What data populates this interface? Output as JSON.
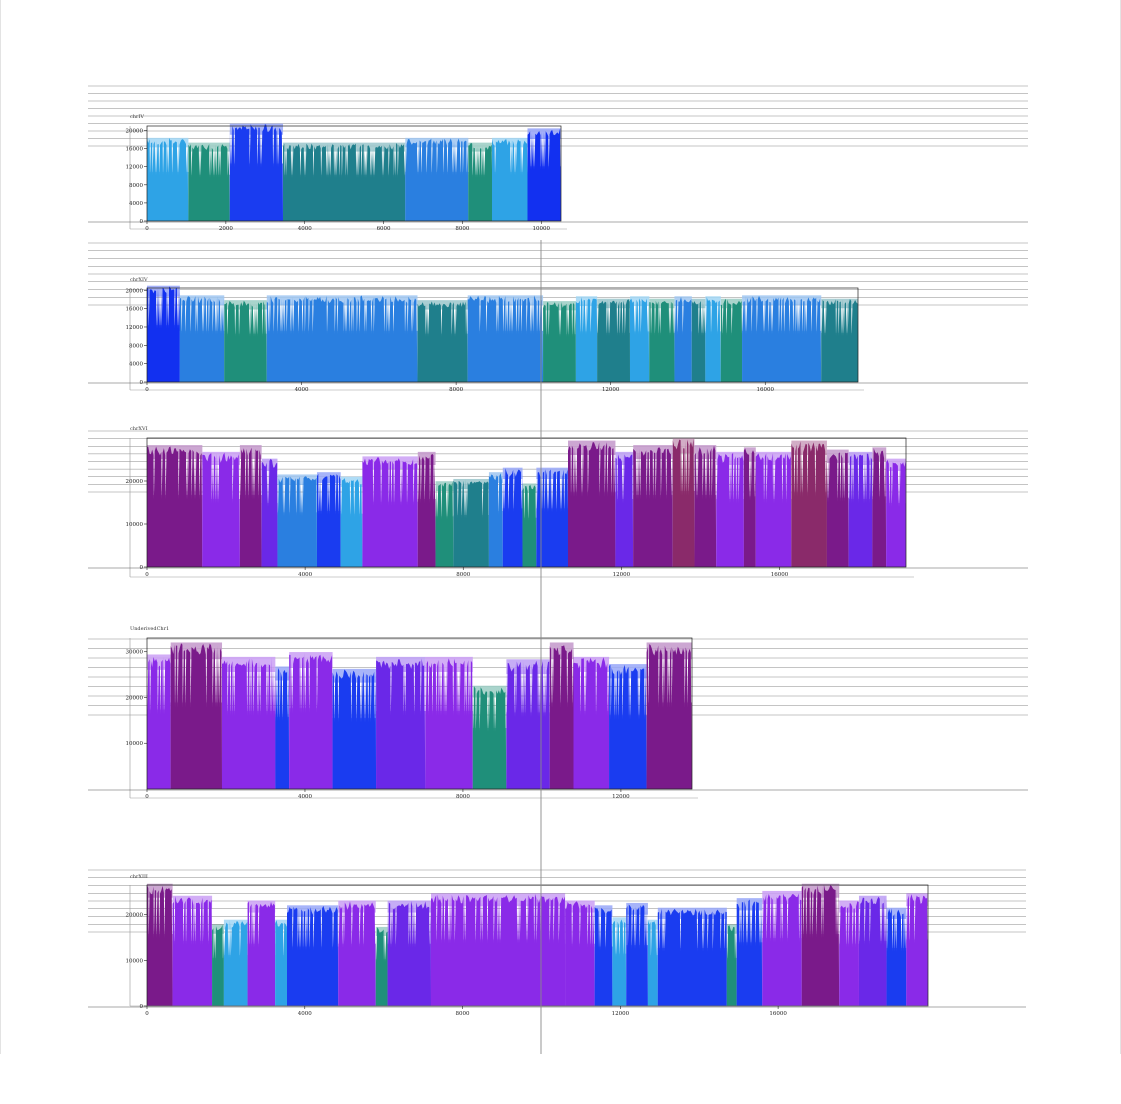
{
  "chart_data": [
    {
      "type": "area",
      "title": "chrIV",
      "xlim": [
        0,
        10500
      ],
      "ylim": [
        0,
        21000
      ],
      "x_ticks": [
        "0",
        "2000",
        "4000",
        "6000",
        "8000",
        "10000"
      ],
      "y_ticks": [
        "0",
        "4000",
        "8000",
        "12000",
        "16000",
        "20000"
      ],
      "segments": [
        {
          "start": 0,
          "end": 1050,
          "value": 17500,
          "color": "#2ea3e6"
        },
        {
          "start": 1050,
          "end": 2100,
          "value": 16500,
          "color": "#1f8f7a"
        },
        {
          "start": 2100,
          "end": 3450,
          "value": 20500,
          "color": "#1a3cf0"
        },
        {
          "start": 3450,
          "end": 6550,
          "value": 16500,
          "color": "#1f7f8c"
        },
        {
          "start": 6550,
          "end": 8150,
          "value": 17500,
          "color": "#2a7fe0"
        },
        {
          "start": 8150,
          "end": 8750,
          "value": 16500,
          "color": "#1f8f7a"
        },
        {
          "start": 8750,
          "end": 9650,
          "value": 17500,
          "color": "#2ea3e6"
        },
        {
          "start": 9650,
          "end": 10500,
          "value": 19500,
          "color": "#1230f0"
        }
      ]
    },
    {
      "type": "area",
      "title": "chrXIV",
      "xlim": [
        0,
        18400
      ],
      "ylim": [
        0,
        20500
      ],
      "x_ticks": [
        "0",
        "4000",
        "8000",
        "12000",
        "16000"
      ],
      "y_ticks": [
        "0",
        "4000",
        "8000",
        "12000",
        "16000",
        "20000"
      ],
      "segments": [
        {
          "start": 0,
          "end": 850,
          "value": 20000,
          "color": "#1230f0"
        },
        {
          "start": 850,
          "end": 2000,
          "value": 18000,
          "color": "#2a7fe0"
        },
        {
          "start": 2000,
          "end": 3100,
          "value": 17000,
          "color": "#1f8f7a"
        },
        {
          "start": 3100,
          "end": 7000,
          "value": 18000,
          "color": "#2a7fe0"
        },
        {
          "start": 7000,
          "end": 8300,
          "value": 17000,
          "color": "#1f7f8c"
        },
        {
          "start": 8300,
          "end": 10250,
          "value": 18000,
          "color": "#2a7fe0"
        },
        {
          "start": 10250,
          "end": 11100,
          "value": 16800,
          "color": "#1f8f7a"
        },
        {
          "start": 11100,
          "end": 11650,
          "value": 17800,
          "color": "#2ea3e6"
        },
        {
          "start": 11650,
          "end": 12500,
          "value": 17300,
          "color": "#1f7f8c"
        },
        {
          "start": 12500,
          "end": 13000,
          "value": 17800,
          "color": "#2ea3e6"
        },
        {
          "start": 13000,
          "end": 13650,
          "value": 17300,
          "color": "#1f8f7a"
        },
        {
          "start": 13650,
          "end": 14100,
          "value": 17800,
          "color": "#2a7fe0"
        },
        {
          "start": 14100,
          "end": 14450,
          "value": 17300,
          "color": "#1f7f8c"
        },
        {
          "start": 14450,
          "end": 14850,
          "value": 17800,
          "color": "#2ea3e6"
        },
        {
          "start": 14850,
          "end": 15400,
          "value": 17300,
          "color": "#1f8f7a"
        },
        {
          "start": 15400,
          "end": 17450,
          "value": 18000,
          "color": "#2a7fe0"
        },
        {
          "start": 17450,
          "end": 18400,
          "value": 17300,
          "color": "#1f7f8c"
        }
      ]
    },
    {
      "type": "area",
      "title": "chrXVI",
      "xlim": [
        0,
        19200
      ],
      "ylim": [
        0,
        30000
      ],
      "x_ticks": [
        "0",
        "4000",
        "8000",
        "12000",
        "16000"
      ],
      "y_ticks": [
        "0",
        "10000",
        "20000"
      ],
      "segments": [
        {
          "start": 0,
          "end": 1400,
          "value": 27000,
          "color": "#7a1a8a"
        },
        {
          "start": 1400,
          "end": 2350,
          "value": 25500,
          "color": "#8a2ae8"
        },
        {
          "start": 2350,
          "end": 2900,
          "value": 27000,
          "color": "#7a1a8a"
        },
        {
          "start": 2900,
          "end": 3300,
          "value": 24000,
          "color": "#6a28e8"
        },
        {
          "start": 3300,
          "end": 4300,
          "value": 20500,
          "color": "#2a7fe0"
        },
        {
          "start": 4300,
          "end": 4900,
          "value": 21000,
          "color": "#1a3cf0"
        },
        {
          "start": 4900,
          "end": 5450,
          "value": 20000,
          "color": "#2ea3e6"
        },
        {
          "start": 5450,
          "end": 6850,
          "value": 24500,
          "color": "#8a2ae8"
        },
        {
          "start": 6850,
          "end": 7300,
          "value": 25500,
          "color": "#7a1a8a"
        },
        {
          "start": 7300,
          "end": 7750,
          "value": 19000,
          "color": "#1f8f7a"
        },
        {
          "start": 7750,
          "end": 8650,
          "value": 19500,
          "color": "#1f7f8c"
        },
        {
          "start": 8650,
          "end": 9000,
          "value": 21000,
          "color": "#2a7fe0"
        },
        {
          "start": 9000,
          "end": 9500,
          "value": 22000,
          "color": "#1a3cf0"
        },
        {
          "start": 9500,
          "end": 9850,
          "value": 18500,
          "color": "#1f8f7a"
        },
        {
          "start": 9850,
          "end": 10650,
          "value": 22000,
          "color": "#1a3cf0"
        },
        {
          "start": 10650,
          "end": 11850,
          "value": 28000,
          "color": "#7a1a8a"
        },
        {
          "start": 11850,
          "end": 12300,
          "value": 25500,
          "color": "#6a28e8"
        },
        {
          "start": 12300,
          "end": 13300,
          "value": 27000,
          "color": "#7a1a8a"
        },
        {
          "start": 13300,
          "end": 13850,
          "value": 28500,
          "color": "#8a2a6a"
        },
        {
          "start": 13850,
          "end": 14400,
          "value": 27000,
          "color": "#7a1a8a"
        },
        {
          "start": 14400,
          "end": 15100,
          "value": 25500,
          "color": "#8a2ae8"
        },
        {
          "start": 15100,
          "end": 15400,
          "value": 26500,
          "color": "#7a1a8a"
        },
        {
          "start": 15400,
          "end": 16300,
          "value": 25500,
          "color": "#8a2ae8"
        },
        {
          "start": 16300,
          "end": 17200,
          "value": 28000,
          "color": "#8a2a6a"
        },
        {
          "start": 17200,
          "end": 17750,
          "value": 26000,
          "color": "#7a1a8a"
        },
        {
          "start": 17750,
          "end": 18350,
          "value": 25500,
          "color": "#6a28e8"
        },
        {
          "start": 18350,
          "end": 18700,
          "value": 26500,
          "color": "#7a1a8a"
        },
        {
          "start": 18700,
          "end": 19200,
          "value": 24000,
          "color": "#8a2ae8"
        }
      ]
    },
    {
      "type": "area",
      "title": "UnderivedChr1",
      "xlim": [
        0,
        13800
      ],
      "ylim": [
        0,
        33000
      ],
      "x_ticks": [
        "0",
        "4000",
        "8000",
        "12000"
      ],
      "y_ticks": [
        "10000",
        "20000",
        "30000"
      ],
      "segments": [
        {
          "start": 0,
          "end": 600,
          "value": 28000,
          "color": "#8a2ae8"
        },
        {
          "start": 600,
          "end": 1900,
          "value": 30500,
          "color": "#7a1a8a"
        },
        {
          "start": 1900,
          "end": 3250,
          "value": 27500,
          "color": "#8a2ae8"
        },
        {
          "start": 3250,
          "end": 3600,
          "value": 25500,
          "color": "#1a3cf0"
        },
        {
          "start": 3600,
          "end": 4700,
          "value": 28500,
          "color": "#8a2ae8"
        },
        {
          "start": 4700,
          "end": 5800,
          "value": 25000,
          "color": "#1a3cf0"
        },
        {
          "start": 5800,
          "end": 7050,
          "value": 27500,
          "color": "#6a28e8"
        },
        {
          "start": 7050,
          "end": 8250,
          "value": 27500,
          "color": "#8a2ae8"
        },
        {
          "start": 8250,
          "end": 9100,
          "value": 21500,
          "color": "#1f8f7a"
        },
        {
          "start": 9100,
          "end": 10200,
          "value": 27000,
          "color": "#6a28e8"
        },
        {
          "start": 10200,
          "end": 10800,
          "value": 30500,
          "color": "#7a1a8a"
        },
        {
          "start": 10800,
          "end": 11700,
          "value": 27500,
          "color": "#8a2ae8"
        },
        {
          "start": 11700,
          "end": 12650,
          "value": 26000,
          "color": "#1a3cf0"
        },
        {
          "start": 12650,
          "end": 13800,
          "value": 30500,
          "color": "#7a1a8a"
        }
      ]
    },
    {
      "type": "area",
      "title": "chrXIII",
      "xlim": [
        0,
        19800
      ],
      "ylim": [
        0,
        26500
      ],
      "x_ticks": [
        "0",
        "4000",
        "8000",
        "12000",
        "16000"
      ],
      "y_ticks": [
        "0",
        "10000",
        "20000"
      ],
      "segments": [
        {
          "start": 0,
          "end": 650,
          "value": 25500,
          "color": "#7a1a8a"
        },
        {
          "start": 650,
          "end": 1650,
          "value": 23000,
          "color": "#8a2ae8"
        },
        {
          "start": 1650,
          "end": 1950,
          "value": 17000,
          "color": "#1f8f7a"
        },
        {
          "start": 1950,
          "end": 2550,
          "value": 18000,
          "color": "#2ea3e6"
        },
        {
          "start": 2550,
          "end": 3250,
          "value": 22000,
          "color": "#8a2ae8"
        },
        {
          "start": 3250,
          "end": 3550,
          "value": 18000,
          "color": "#2ea3e6"
        },
        {
          "start": 3550,
          "end": 4850,
          "value": 21000,
          "color": "#1a3cf0"
        },
        {
          "start": 4850,
          "end": 5800,
          "value": 22000,
          "color": "#8a2ae8"
        },
        {
          "start": 5800,
          "end": 6100,
          "value": 16500,
          "color": "#1f8f7a"
        },
        {
          "start": 6100,
          "end": 7200,
          "value": 22000,
          "color": "#6a28e8"
        },
        {
          "start": 7200,
          "end": 10600,
          "value": 23500,
          "color": "#8a2ae8"
        },
        {
          "start": 10600,
          "end": 11350,
          "value": 22000,
          "color": "#8a2ae8"
        },
        {
          "start": 11350,
          "end": 11800,
          "value": 21000,
          "color": "#1a3cf0"
        },
        {
          "start": 11800,
          "end": 12150,
          "value": 18500,
          "color": "#2ea3e6"
        },
        {
          "start": 12150,
          "end": 12700,
          "value": 21500,
          "color": "#1a3cf0"
        },
        {
          "start": 12700,
          "end": 12950,
          "value": 18000,
          "color": "#2ea3e6"
        },
        {
          "start": 12950,
          "end": 14700,
          "value": 20500,
          "color": "#1a3cf0"
        },
        {
          "start": 14700,
          "end": 14950,
          "value": 17000,
          "color": "#1f8f7a"
        },
        {
          "start": 14950,
          "end": 15600,
          "value": 22500,
          "color": "#1a3cf0"
        },
        {
          "start": 15600,
          "end": 16600,
          "value": 24000,
          "color": "#8a2ae8"
        },
        {
          "start": 16600,
          "end": 17550,
          "value": 25500,
          "color": "#7a1a8a"
        },
        {
          "start": 17550,
          "end": 18050,
          "value": 22000,
          "color": "#8a2ae8"
        },
        {
          "start": 18050,
          "end": 18750,
          "value": 23000,
          "color": "#6a28e8"
        },
        {
          "start": 18750,
          "end": 19250,
          "value": 20500,
          "color": "#1a3cf0"
        },
        {
          "start": 19250,
          "end": 19800,
          "value": 23500,
          "color": "#8a2ae8"
        }
      ]
    }
  ]
}
